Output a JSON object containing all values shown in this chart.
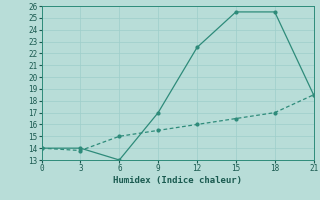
{
  "title": "",
  "xlabel": "Humidex (Indice chaleur)",
  "xlim": [
    0,
    21
  ],
  "ylim": [
    13,
    26
  ],
  "xticks": [
    0,
    3,
    6,
    9,
    12,
    15,
    18,
    21
  ],
  "yticks": [
    13,
    14,
    15,
    16,
    17,
    18,
    19,
    20,
    21,
    22,
    23,
    24,
    25,
    26
  ],
  "line1_x": [
    0,
    3,
    6,
    9,
    12,
    15,
    18,
    21
  ],
  "line1_y": [
    14,
    14,
    13,
    17,
    22.5,
    25.5,
    25.5,
    18.5
  ],
  "line2_x": [
    0,
    3,
    6,
    9,
    12,
    15,
    18,
    21
  ],
  "line2_y": [
    14,
    13.8,
    15.0,
    15.5,
    16.0,
    16.5,
    17.0,
    18.5
  ],
  "line_color": "#2e8b7a",
  "bg_color": "#b8ddd8",
  "grid_color": "#9ececa",
  "marker": "o",
  "marker_size": 2,
  "line_width": 0.9
}
